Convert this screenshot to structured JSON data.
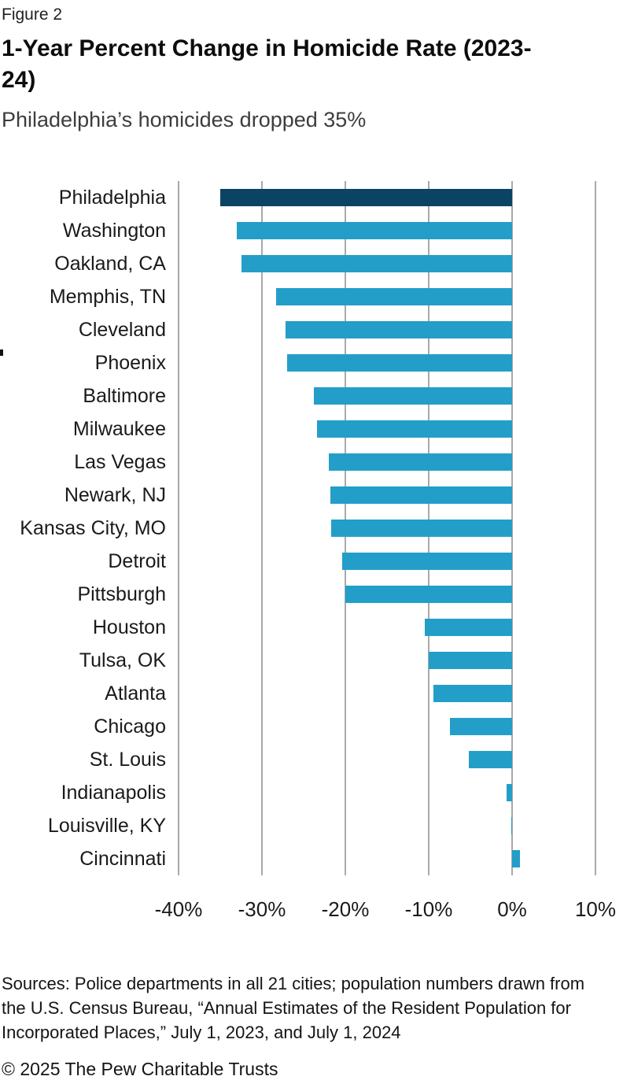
{
  "figure_label": "Figure 2",
  "title": "1-Year Percent Change in Homicide Rate (2023-24)",
  "subtitle": "Philadelphia’s homicides dropped 35%",
  "source_note": {
    "lines": [
      "Sources: Police departments in all 21 cities; population numbers drawn from",
      "the U.S. Census Bureau, “Annual Estimates of the Resident Population for",
      "Incorporated Places,” July 1, 2023, and July 1, 2024"
    ]
  },
  "copyright": "© 2025 The Pew Charitable Trusts",
  "colors": {
    "highlight_bar": "#0B4365",
    "bar": "#239EC9",
    "gridline": "#A9A9A9",
    "subtitle_text": "#3D3D3D"
  },
  "chart_data": {
    "type": "bar",
    "orientation": "horizontal",
    "title": "1-Year Percent Change in Homicide Rate (2023-24)",
    "subtitle": "Philadelphia’s homicides dropped 35%",
    "xlabel": "",
    "ylabel": "",
    "xlim": [
      -40,
      10
    ],
    "grid": true,
    "unit": "percent",
    "highlighted_category": "Philadelphia",
    "categories": [
      "Philadelphia",
      "Washington",
      "Oakland, CA",
      "Memphis, TN",
      "Cleveland",
      "Phoenix",
      "Baltimore",
      "Milwaukee",
      "Las Vegas",
      "Newark, NJ",
      "Kansas City, MO",
      "Detroit",
      "Pittsburgh",
      "Houston",
      "Tulsa, OK",
      "Atlanta",
      "Chicago",
      "St. Louis",
      "Indianapolis",
      "Louisville, KY",
      "Cincinnati"
    ],
    "values": [
      -35,
      -33,
      -32.5,
      -28.3,
      -27.2,
      -27,
      -23.8,
      -23.4,
      -22,
      -21.8,
      -21.7,
      -20.4,
      -20,
      -10.5,
      -10,
      -9.4,
      -7.5,
      -5.2,
      -0.7,
      -0.1,
      0.9
    ],
    "x_tick_labels": [
      "-40%",
      "-30%",
      "-20%",
      "-10%",
      "0%",
      "10%"
    ],
    "x_tick_values": [
      -40,
      -30,
      -20,
      -10,
      0,
      10
    ]
  }
}
